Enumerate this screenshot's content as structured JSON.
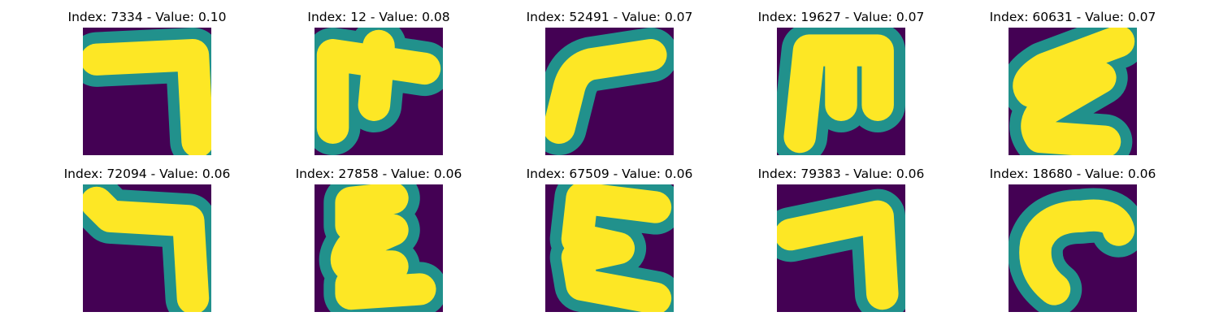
{
  "colors": {
    "background": "#440154",
    "stroke_edge": "#21918c",
    "stroke_core": "#fde725"
  },
  "panels": [
    {
      "title": "Index: 7334 - Value: 0.10",
      "glyph": "seven-shape"
    },
    {
      "title": "Index: 12 - Value: 0.08",
      "glyph": "m-cross-shape"
    },
    {
      "title": "Index: 52491 - Value: 0.07",
      "glyph": "r-curve-shape"
    },
    {
      "title": "Index: 19627 - Value: 0.07",
      "glyph": "m-shape"
    },
    {
      "title": "Index: 60631 - Value: 0.07",
      "glyph": "epsilon-shape"
    },
    {
      "title": "Index: 72094 - Value: 0.06",
      "glyph": "seven-shape"
    },
    {
      "title": "Index: 27858 - Value: 0.06",
      "glyph": "epsilon-shape"
    },
    {
      "title": "Index: 67509 - Value: 0.06",
      "glyph": "e-shape"
    },
    {
      "title": "Index: 79383 - Value: 0.06",
      "glyph": "seven-shape"
    },
    {
      "title": "Index: 18680 - Value: 0.06",
      "glyph": "c-hook-shape"
    }
  ]
}
